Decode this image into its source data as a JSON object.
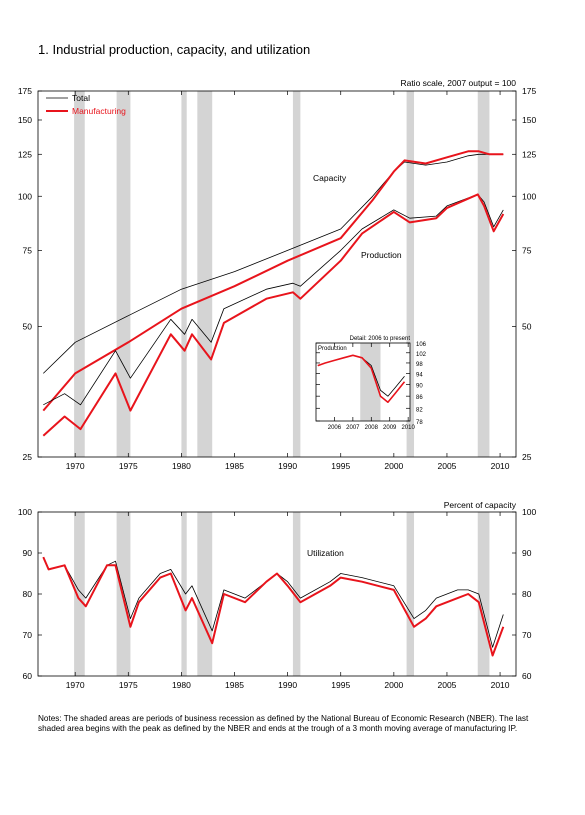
{
  "title": "1.  Industrial production, capacity, and utilization",
  "notes": "Notes: The shaded areas are periods of business recession as defined by the National Bureau of Economic Research (NBER). The last shaded area begins with the peak as defined by the NBER and ends at the trough of a 3 month moving average of manufacturing IP.",
  "colors": {
    "total": "#000000",
    "manufacturing": "#e8141c",
    "recession": "#d4d4d4"
  },
  "chart_data": [
    {
      "type": "line",
      "scale": "log",
      "unit_label": "Ratio scale, 2007 output = 100",
      "ylim": [
        25,
        175
      ],
      "yticks": [
        "25",
        "50",
        "75",
        "100",
        "125",
        "150",
        "175"
      ],
      "xlim": [
        1966.5,
        2011.5
      ],
      "xticks": [
        "1970",
        "1975",
        "1980",
        "1985",
        "1990",
        "1995",
        "2000",
        "2005",
        "2010"
      ],
      "legend": {
        "position": "top-left",
        "entries": [
          "Total",
          "Manufacturing"
        ]
      },
      "annotations": [
        "Capacity",
        "Production"
      ],
      "recessions": [
        [
          1969.9,
          1970.9
        ],
        [
          1973.9,
          1975.2
        ],
        [
          1980.0,
          1980.5
        ],
        [
          1981.5,
          1982.9
        ],
        [
          1990.5,
          1991.2
        ],
        [
          2001.2,
          2001.9
        ],
        [
          2007.9,
          2009.0
        ]
      ],
      "series": [
        {
          "name": "Total",
          "measure": "Capacity",
          "x": [
            1967,
            1970,
            1975,
            1980,
            1985,
            1990,
            1995,
            1998,
            2000,
            2001,
            2003,
            2005,
            2007,
            2008,
            2009,
            2010.3
          ],
          "y": [
            39,
            46,
            53,
            61,
            67,
            75,
            84,
            100,
            114,
            120,
            118,
            120,
            124,
            125,
            125,
            125
          ]
        },
        {
          "name": "Manufacturing",
          "measure": "Capacity",
          "x": [
            1967,
            1970,
            1975,
            1980,
            1985,
            1990,
            1995,
            1998,
            2000,
            2001,
            2003,
            2005,
            2007,
            2008,
            2009,
            2010.3
          ],
          "y": [
            32,
            39,
            46,
            55,
            62,
            71,
            80,
            98,
            114,
            121,
            119,
            123,
            127,
            127,
            125,
            125
          ]
        },
        {
          "name": "Total",
          "measure": "Production",
          "x": [
            1967,
            1969,
            1970.5,
            1973.8,
            1975.2,
            1979,
            1980.3,
            1981,
            1982.8,
            1984,
            1988,
            1990.5,
            1991.2,
            1995,
            1997,
            2000,
            2001.5,
            2004,
            2005,
            2007.9,
            2008.5,
            2009.4,
            2010.3
          ],
          "y": [
            33,
            35,
            33,
            44,
            38,
            52,
            48,
            52,
            46,
            55,
            61,
            63,
            62,
            75,
            84,
            93,
            89,
            90,
            95,
            101,
            97,
            85,
            93
          ]
        },
        {
          "name": "Manufacturing",
          "measure": "Production",
          "x": [
            1967,
            1969,
            1970.5,
            1973.8,
            1975.2,
            1979,
            1980.3,
            1981,
            1982.8,
            1984,
            1988,
            1990.5,
            1991.2,
            1995,
            1997,
            2000,
            2001.5,
            2004,
            2005,
            2007.9,
            2008.5,
            2009.4,
            2010.3
          ],
          "y": [
            28,
            31,
            29,
            39,
            32,
            48,
            44,
            48,
            42,
            51,
            58,
            60,
            58,
            71,
            82,
            92,
            87,
            89,
            94,
            101,
            95,
            83,
            91
          ]
        }
      ]
    },
    {
      "type": "line",
      "title": "Detail: 2006 to present",
      "subtitle": "Production",
      "scale": "log",
      "ylim": [
        78,
        106
      ],
      "yticks": [
        "78",
        "82",
        "86",
        "90",
        "94",
        "98",
        "102",
        "106"
      ],
      "xlim": [
        2005.5,
        2010.6
      ],
      "xticks": [
        "2006",
        "2007",
        "2008",
        "2009",
        "2010"
      ],
      "recessions": [
        [
          2007.9,
          2009.0
        ]
      ],
      "series": [
        {
          "name": "Total",
          "x": [
            2005.6,
            2006,
            2006.5,
            2007,
            2007.5,
            2008,
            2008.5,
            2009,
            2009.4,
            2009.8,
            2010.3
          ],
          "y": [
            97,
            98,
            99,
            100,
            101,
            100,
            97,
            88,
            86,
            89,
            93
          ]
        },
        {
          "name": "Manufacturing",
          "x": [
            2005.6,
            2006,
            2006.5,
            2007,
            2007.5,
            2008,
            2008.5,
            2009,
            2009.4,
            2009.8,
            2010.3
          ],
          "y": [
            97,
            98,
            99,
            100,
            101,
            100,
            96,
            86,
            84,
            87,
            91
          ]
        }
      ]
    },
    {
      "type": "line",
      "ylabel": "Percent of capacity",
      "ylim": [
        60,
        100
      ],
      "yticks": [
        "60",
        "70",
        "80",
        "90",
        "100"
      ],
      "xlim": [
        1966.5,
        2011.5
      ],
      "xticks": [
        "1970",
        "1975",
        "1980",
        "1985",
        "1990",
        "1995",
        "2000",
        "2005",
        "2010"
      ],
      "annotations": [
        "Utilization"
      ],
      "recessions": [
        [
          1969.9,
          1970.9
        ],
        [
          1973.9,
          1975.2
        ],
        [
          1980.0,
          1980.5
        ],
        [
          1981.5,
          1982.9
        ],
        [
          1990.5,
          1991.2
        ],
        [
          2001.2,
          2001.9
        ],
        [
          2007.9,
          2009.0
        ]
      ],
      "series": [
        {
          "name": "Total",
          "x": [
            1967,
            1967.5,
            1969,
            1970.3,
            1971,
            1973,
            1973.8,
            1975.2,
            1976,
            1978,
            1979,
            1980.4,
            1981,
            1982.9,
            1984,
            1986,
            1988,
            1989,
            1990,
            1991.2,
            1994,
            1995,
            1997,
            2000,
            2001.9,
            2003,
            2004,
            2006,
            2007,
            2008,
            2009.3,
            2010.3
          ],
          "y": [
            89,
            86,
            87,
            81,
            79,
            87,
            88,
            74,
            79,
            85,
            86,
            80,
            82,
            71,
            81,
            79,
            83,
            85,
            83,
            79,
            83,
            85,
            84,
            82,
            74,
            76,
            79,
            81,
            81,
            80,
            67,
            75
          ]
        },
        {
          "name": "Manufacturing",
          "x": [
            1967,
            1967.5,
            1969,
            1970.3,
            1971,
            1973,
            1973.8,
            1975.2,
            1976,
            1978,
            1979,
            1980.4,
            1981,
            1982.9,
            1984,
            1986,
            1988,
            1989,
            1990,
            1991.2,
            1994,
            1995,
            1997,
            2000,
            2001.9,
            2003,
            2004,
            2006,
            2007,
            2008,
            2009.3,
            2010.3
          ],
          "y": [
            89,
            86,
            87,
            79,
            77,
            87,
            87,
            72,
            78,
            84,
            85,
            76,
            79,
            68,
            80,
            78,
            83,
            85,
            82,
            78,
            82,
            84,
            83,
            81,
            72,
            74,
            77,
            79,
            80,
            78,
            65,
            72
          ]
        }
      ]
    }
  ]
}
